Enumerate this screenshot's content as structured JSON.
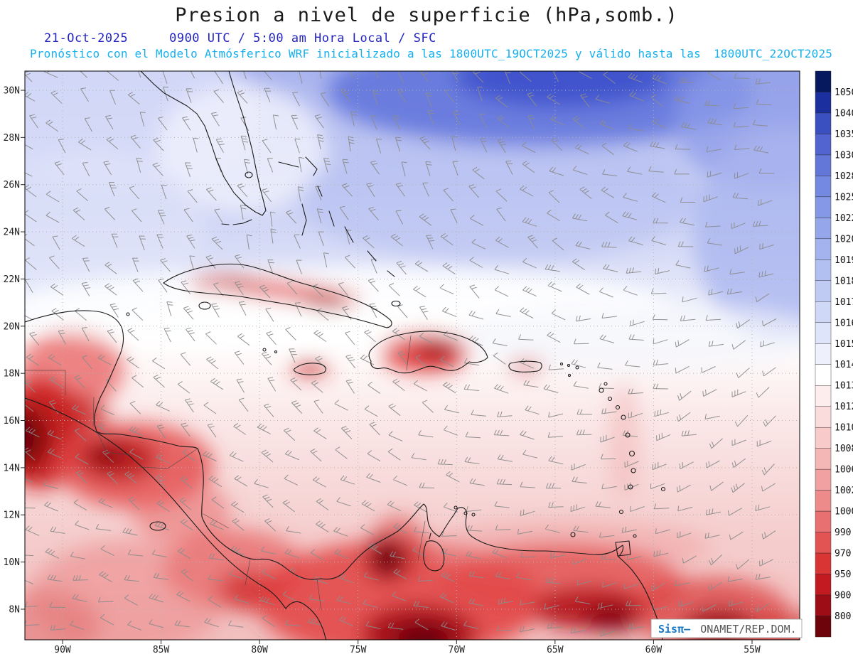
{
  "header": {
    "title": "Presion a nivel de superficie (hPa,somb.)",
    "date": "21-Oct-2025",
    "time": "0900 UTC / 5:00 am Hora Local / SFC",
    "forecast_line": "Pronóstico con el Modelo Atmósferico WRF inicializado a las 1800UTC_19OCT2025 y válido hasta las",
    "valid_until": "1800UTC_22OCT2025"
  },
  "map": {
    "lat_labels": [
      "30N",
      "28N",
      "26N",
      "24N",
      "22N",
      "20N",
      "18N",
      "16N",
      "14N",
      "12N",
      "10N",
      "8N"
    ],
    "lon_labels": [
      "90W",
      "85W",
      "80W",
      "75W",
      "70W",
      "65W",
      "60W",
      "55W"
    ],
    "watermark": {
      "brand": "Sisπ—",
      "source": "ONAMET/REP.DOM."
    }
  },
  "colorbar": {
    "values": [
      1050,
      1040,
      1035,
      1030,
      1028,
      1025,
      1022,
      1020,
      1019,
      1018,
      1017,
      1016,
      1015,
      1014,
      1013,
      1012,
      1010,
      1008,
      1006,
      1002,
      1000,
      990,
      970,
      950,
      900,
      800
    ],
    "colors": [
      "#06195f",
      "#1c2f9e",
      "#3a4fc0",
      "#5164cf",
      "#6377d9",
      "#7489e1",
      "#8598e7",
      "#95a6eb",
      "#a4b2ee",
      "#b2bff1",
      "#c0cbf4",
      "#cfd8f6",
      "#dee4f9",
      "#eef1fc",
      "#ffffff",
      "#fdeded",
      "#fbdcdc",
      "#f8caca",
      "#f5b6b6",
      "#f1a1a1",
      "#ed8a8a",
      "#e87070",
      "#e25454",
      "#da3535",
      "#c21a20",
      "#9c0d15",
      "#6e040b"
    ]
  },
  "chart_data": {
    "type": "heatmap",
    "title": "Presion a nivel de superficie (hPa,somb.)",
    "variable": "surface pressure (hPa, shaded) with wind barbs",
    "model_run": "WRF inicializado a las 1800UTC_19OCT2025",
    "valid_until": "1800UTC_22OCT2025",
    "valid_time": "21-Oct-2025 0900 UTC / 5:00 am Hora Local / SFC",
    "lat_ticks": [
      "30N",
      "28N",
      "26N",
      "24N",
      "22N",
      "20N",
      "18N",
      "16N",
      "14N",
      "12N",
      "10N",
      "8N"
    ],
    "lon_ticks": [
      "90W",
      "85W",
      "80W",
      "75W",
      "70W",
      "65W",
      "60W",
      "55W"
    ],
    "pressure_levels_hPa": [
      800,
      900,
      950,
      970,
      990,
      1000,
      1002,
      1006,
      1008,
      1010,
      1012,
      1013,
      1014,
      1015,
      1016,
      1017,
      1018,
      1019,
      1020,
      1022,
      1025,
      1028,
      1030,
      1035,
      1040,
      1050
    ],
    "legend_position": "right",
    "pattern": "high pressure (blue, ~1018-1022 hPa) north of 24N; near 1013-1015 band around 20-23N; low pressure (red, <1012 hPa) over Central America, the Greater Antilles and northern South America"
  },
  "colors": {
    "subtitle_blue": "#2424c4",
    "subtitle_cyan": "#17b0ee",
    "watermark_brand_blue": "#1a78c2",
    "barb_gray": "#8c8c8c"
  }
}
